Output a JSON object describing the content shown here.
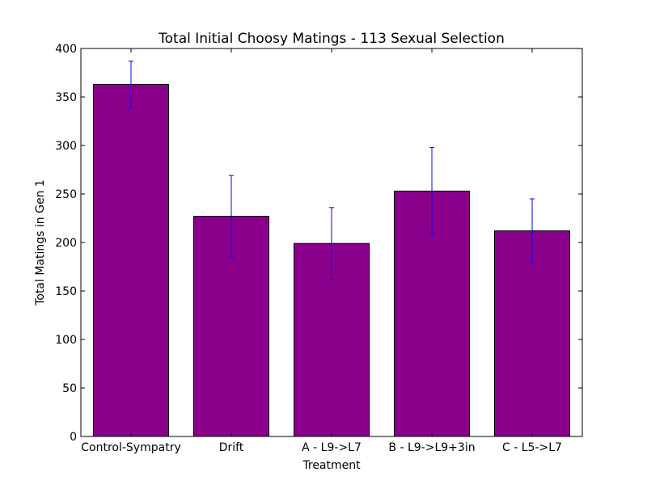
{
  "chart_data": {
    "type": "bar",
    "title": "Total Initial Choosy Matings - 113 Sexual Selection",
    "xlabel": "Treatment",
    "ylabel": "Total Matings in Gen 1",
    "categories": [
      "Control-Sympatry",
      "Drift",
      "A - L9->L7",
      "B - L9->L9+3in",
      "C - L5->L7"
    ],
    "values": [
      363,
      227,
      199,
      253,
      212
    ],
    "errors": [
      24,
      42,
      37,
      45,
      33
    ],
    "ylim": [
      0,
      400
    ],
    "yticks": [
      "0",
      "50",
      "100",
      "150",
      "200",
      "250",
      "300",
      "350",
      "400"
    ],
    "grid": false,
    "bar_color": "#8b008b",
    "error_color": "#0000ff"
  }
}
